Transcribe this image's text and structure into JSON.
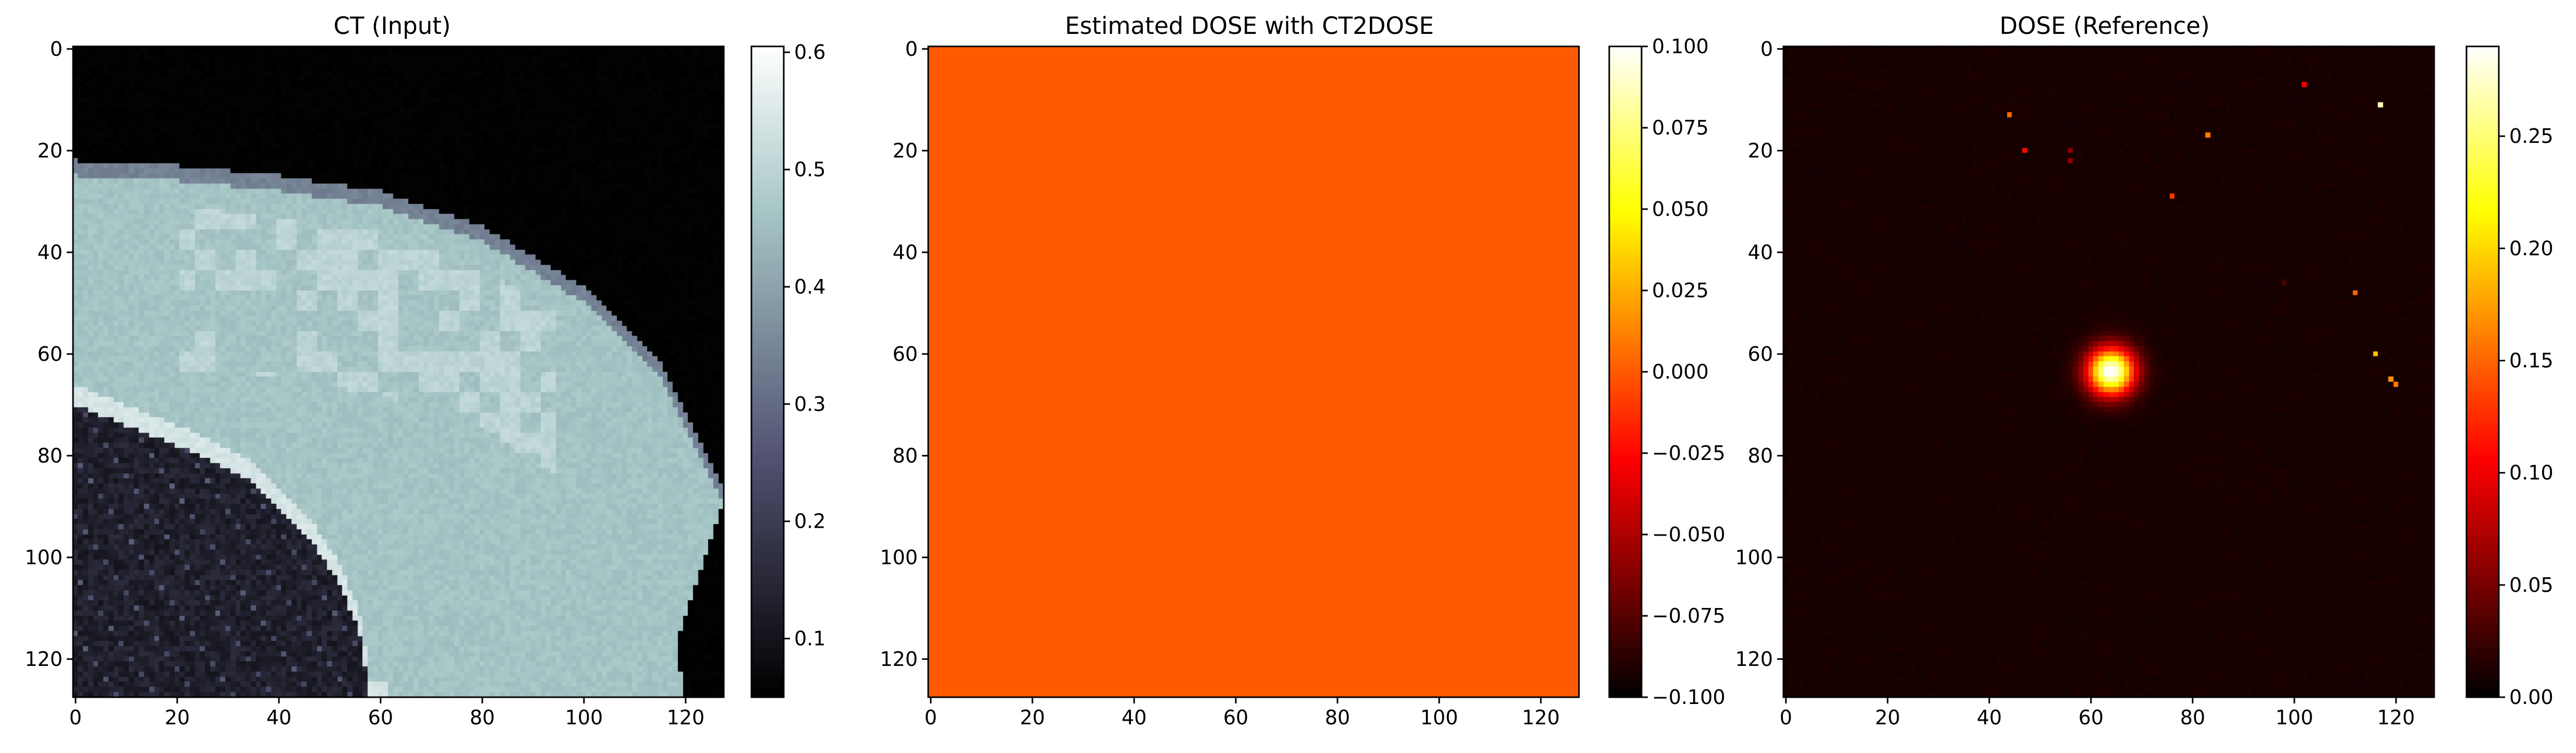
{
  "chart_data": [
    {
      "type": "heatmap",
      "title": "CT (Input)",
      "colormap": "bone",
      "xlim": [
        0,
        128
      ],
      "ylim": [
        128,
        0
      ],
      "xticks": [
        0,
        20,
        40,
        60,
        80,
        100,
        120
      ],
      "yticks": [
        0,
        20,
        40,
        60,
        80,
        100,
        120
      ],
      "colorbar": {
        "range": [
          0.05,
          0.605
        ],
        "ticks": [
          0.1,
          0.2,
          0.3,
          0.4,
          0.5,
          0.6
        ],
        "tick_labels": [
          "0.1",
          "0.2",
          "0.3",
          "0.4",
          "0.5",
          "0.6"
        ]
      },
      "content": {
        "background_value": 0.05,
        "soft_tissue_value": 0.46,
        "lung_value": 0.1,
        "tissue_boundary": [
          [
            0,
            22
          ],
          [
            20,
            23
          ],
          [
            40,
            25
          ],
          [
            60,
            28
          ],
          [
            80,
            35
          ],
          [
            100,
            47
          ],
          [
            115,
            62
          ],
          [
            124,
            80
          ],
          [
            128,
            88
          ]
        ],
        "lung_boundary": [
          [
            0,
            70
          ],
          [
            20,
            78
          ],
          [
            35,
            85
          ],
          [
            45,
            95
          ],
          [
            52,
            105
          ],
          [
            56,
            115
          ],
          [
            58,
            128
          ]
        ],
        "body_boundary": [
          [
            128,
            88
          ],
          [
            122,
            105
          ],
          [
            118,
            118
          ],
          [
            120,
            128
          ]
        ]
      }
    },
    {
      "type": "heatmap",
      "title": "Estimated DOSE with CT2DOSE",
      "colormap": "hot",
      "xlim": [
        0,
        128
      ],
      "ylim": [
        128,
        0
      ],
      "xticks": [
        0,
        20,
        40,
        60,
        80,
        100,
        120
      ],
      "yticks": [
        0,
        20,
        40,
        60,
        80,
        100,
        120
      ],
      "uniform_value": 0.0,
      "colorbar": {
        "range": [
          -0.1,
          0.1
        ],
        "ticks": [
          0.1,
          0.075,
          0.05,
          0.025,
          0.0,
          -0.025,
          -0.05,
          -0.075,
          -0.1
        ],
        "tick_labels": [
          "0.100",
          "0.075",
          "0.050",
          "0.025",
          "0.000",
          "−0.025",
          "−0.050",
          "−0.075",
          "−0.100"
        ]
      }
    },
    {
      "type": "heatmap",
      "title": "DOSE (Reference)",
      "colormap": "hot",
      "xlim": [
        0,
        128
      ],
      "ylim": [
        128,
        0
      ],
      "xticks": [
        0,
        20,
        40,
        60,
        80,
        100,
        120
      ],
      "yticks": [
        0,
        20,
        40,
        60,
        80,
        100,
        120
      ],
      "background_value": 0.008,
      "colorbar": {
        "range": [
          0,
          0.29
        ],
        "ticks": [
          0.0,
          0.05,
          0.1,
          0.15,
          0.2,
          0.25
        ],
        "tick_labels": [
          "0.00",
          "0.05",
          "0.10",
          "0.15",
          "0.20",
          "0.25"
        ]
      },
      "hotspot": {
        "x": 64,
        "y": 63.5,
        "peak": 0.29,
        "sigma": 3.2
      },
      "spots": [
        {
          "x": 44,
          "y": 13,
          "value": 0.15
        },
        {
          "x": 47,
          "y": 20,
          "value": 0.11
        },
        {
          "x": 56,
          "y": 20,
          "value": 0.06
        },
        {
          "x": 56,
          "y": 22,
          "value": 0.06
        },
        {
          "x": 76,
          "y": 29,
          "value": 0.13
        },
        {
          "x": 83,
          "y": 17,
          "value": 0.16
        },
        {
          "x": 102,
          "y": 7,
          "value": 0.1
        },
        {
          "x": 117,
          "y": 11,
          "value": 0.27
        },
        {
          "x": 112,
          "y": 48,
          "value": 0.15
        },
        {
          "x": 116,
          "y": 60,
          "value": 0.19
        },
        {
          "x": 119,
          "y": 65,
          "value": 0.17
        },
        {
          "x": 120,
          "y": 66,
          "value": 0.16
        },
        {
          "x": 98,
          "y": 46,
          "value": 0.03
        }
      ]
    }
  ]
}
